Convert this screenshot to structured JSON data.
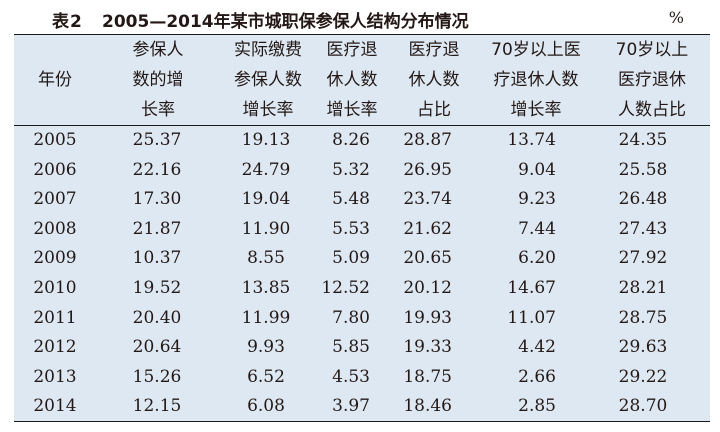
{
  "caption": {
    "tag": "表2",
    "title": "2005—2014年某市城职保参保人结构分布情况",
    "unit": "%"
  },
  "table": {
    "headers": [
      [
        "年份"
      ],
      [
        "参保人",
        "数的增",
        "长率"
      ],
      [
        "实际缴费",
        "参保人数",
        "增长率"
      ],
      [
        "医疗退",
        "休人数",
        "增长率"
      ],
      [
        "医疗退",
        "休人数",
        "占比"
      ],
      [
        "70岁以上医",
        "疗退休人数",
        "增长率"
      ],
      [
        "70岁以上",
        "医疗退休",
        "人数占比"
      ]
    ],
    "rows": [
      [
        "2005",
        "25.37",
        "19.13",
        "8.26",
        "28.87",
        "13.74",
        "24.35"
      ],
      [
        "2006",
        "22.16",
        "24.79",
        "5.32",
        "26.95",
        "9.04",
        "25.58"
      ],
      [
        "2007",
        "17.30",
        "19.04",
        "5.48",
        "23.74",
        "9.23",
        "26.48"
      ],
      [
        "2008",
        "21.87",
        "11.90",
        "5.53",
        "21.62",
        "7.44",
        "27.43"
      ],
      [
        "2009",
        "10.37",
        "8.55",
        "5.09",
        "20.65",
        "6.20",
        "27.92"
      ],
      [
        "2010",
        "19.52",
        "13.85",
        "12.52",
        "20.12",
        "14.67",
        "28.21"
      ],
      [
        "2011",
        "20.40",
        "11.99",
        "7.80",
        "19.93",
        "11.07",
        "28.75"
      ],
      [
        "2012",
        "20.64",
        "9.93",
        "5.85",
        "19.33",
        "4.42",
        "29.63"
      ],
      [
        "2013",
        "15.26",
        "6.52",
        "4.53",
        "18.75",
        "2.66",
        "29.22"
      ],
      [
        "2014",
        "12.15",
        "6.08",
        "3.97",
        "18.46",
        "2.85",
        "28.70"
      ]
    ]
  }
}
